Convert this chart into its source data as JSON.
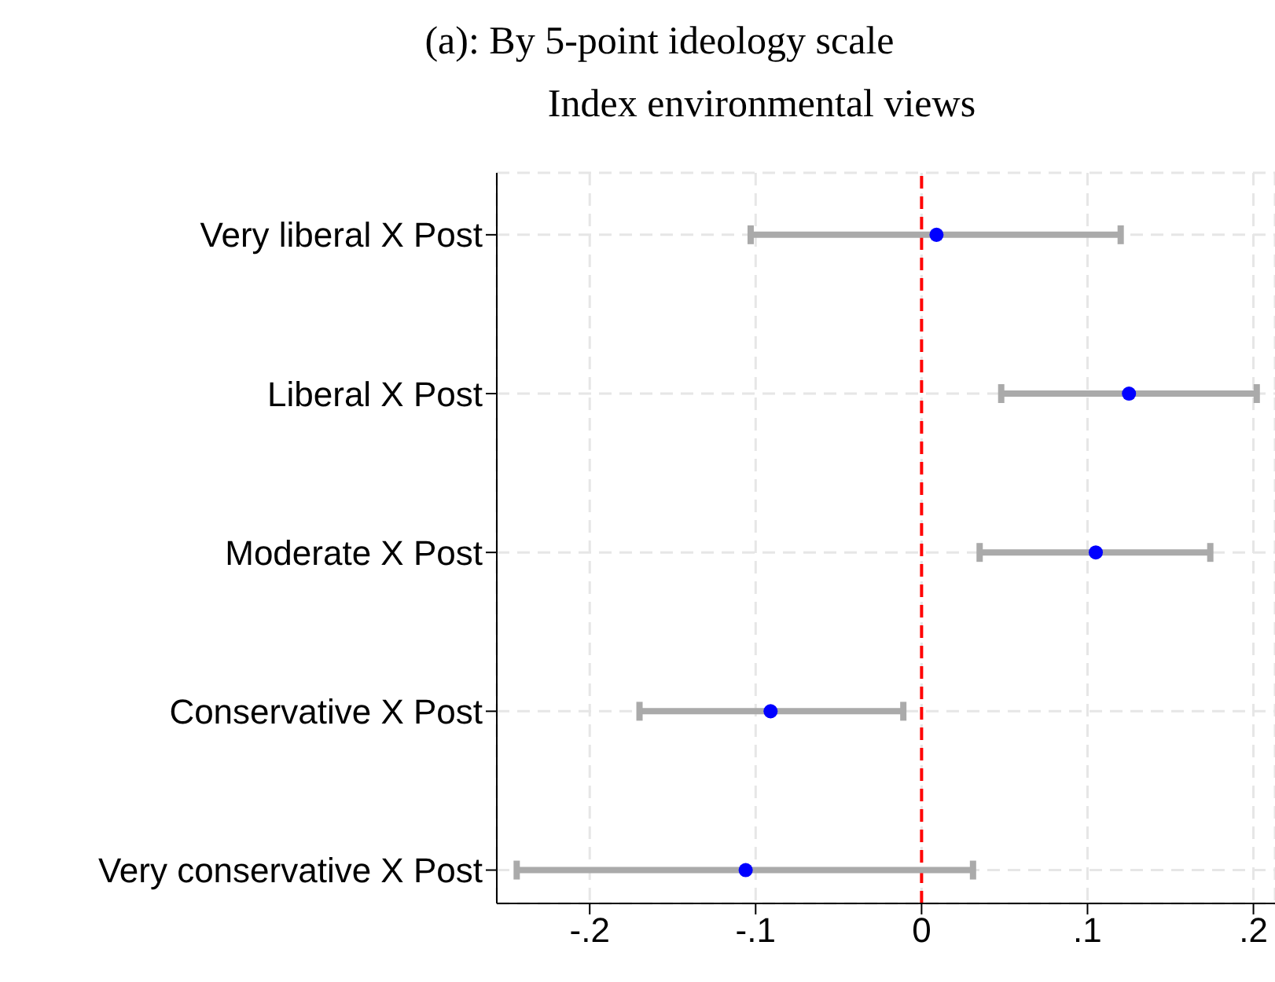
{
  "chart_data": {
    "type": "scatter",
    "title": "(a): By 5-point ideology scale",
    "subtitle": "Index environmental views",
    "orientation": "horizontal",
    "categories": [
      "Very liberal X Post",
      "Liberal X Post",
      "Moderate X Post",
      "Conservative X Post",
      "Very conservative X Post"
    ],
    "values": [
      0.009,
      0.125,
      0.105,
      -0.091,
      -0.106
    ],
    "errors": [
      [
        -0.103,
        0.12
      ],
      [
        0.048,
        0.202
      ],
      [
        0.035,
        0.174
      ],
      [
        -0.17,
        -0.011
      ],
      [
        -0.244,
        0.031
      ]
    ],
    "color": "#0000ff",
    "marker": "circle",
    "xlim": [
      -0.256,
      0.213
    ],
    "xticks": [
      {
        "value": -0.2,
        "label": "-.2"
      },
      {
        "value": -0.1,
        "label": "-.1"
      },
      0,
      {
        "value": 0.1,
        "label": ".1"
      },
      {
        "value": 0.2,
        "label": ".2"
      }
    ],
    "grid": true,
    "ref_lines": [
      {
        "axis": "x",
        "value": 0,
        "color": "#ff0000",
        "line_style": "dashed"
      }
    ]
  }
}
